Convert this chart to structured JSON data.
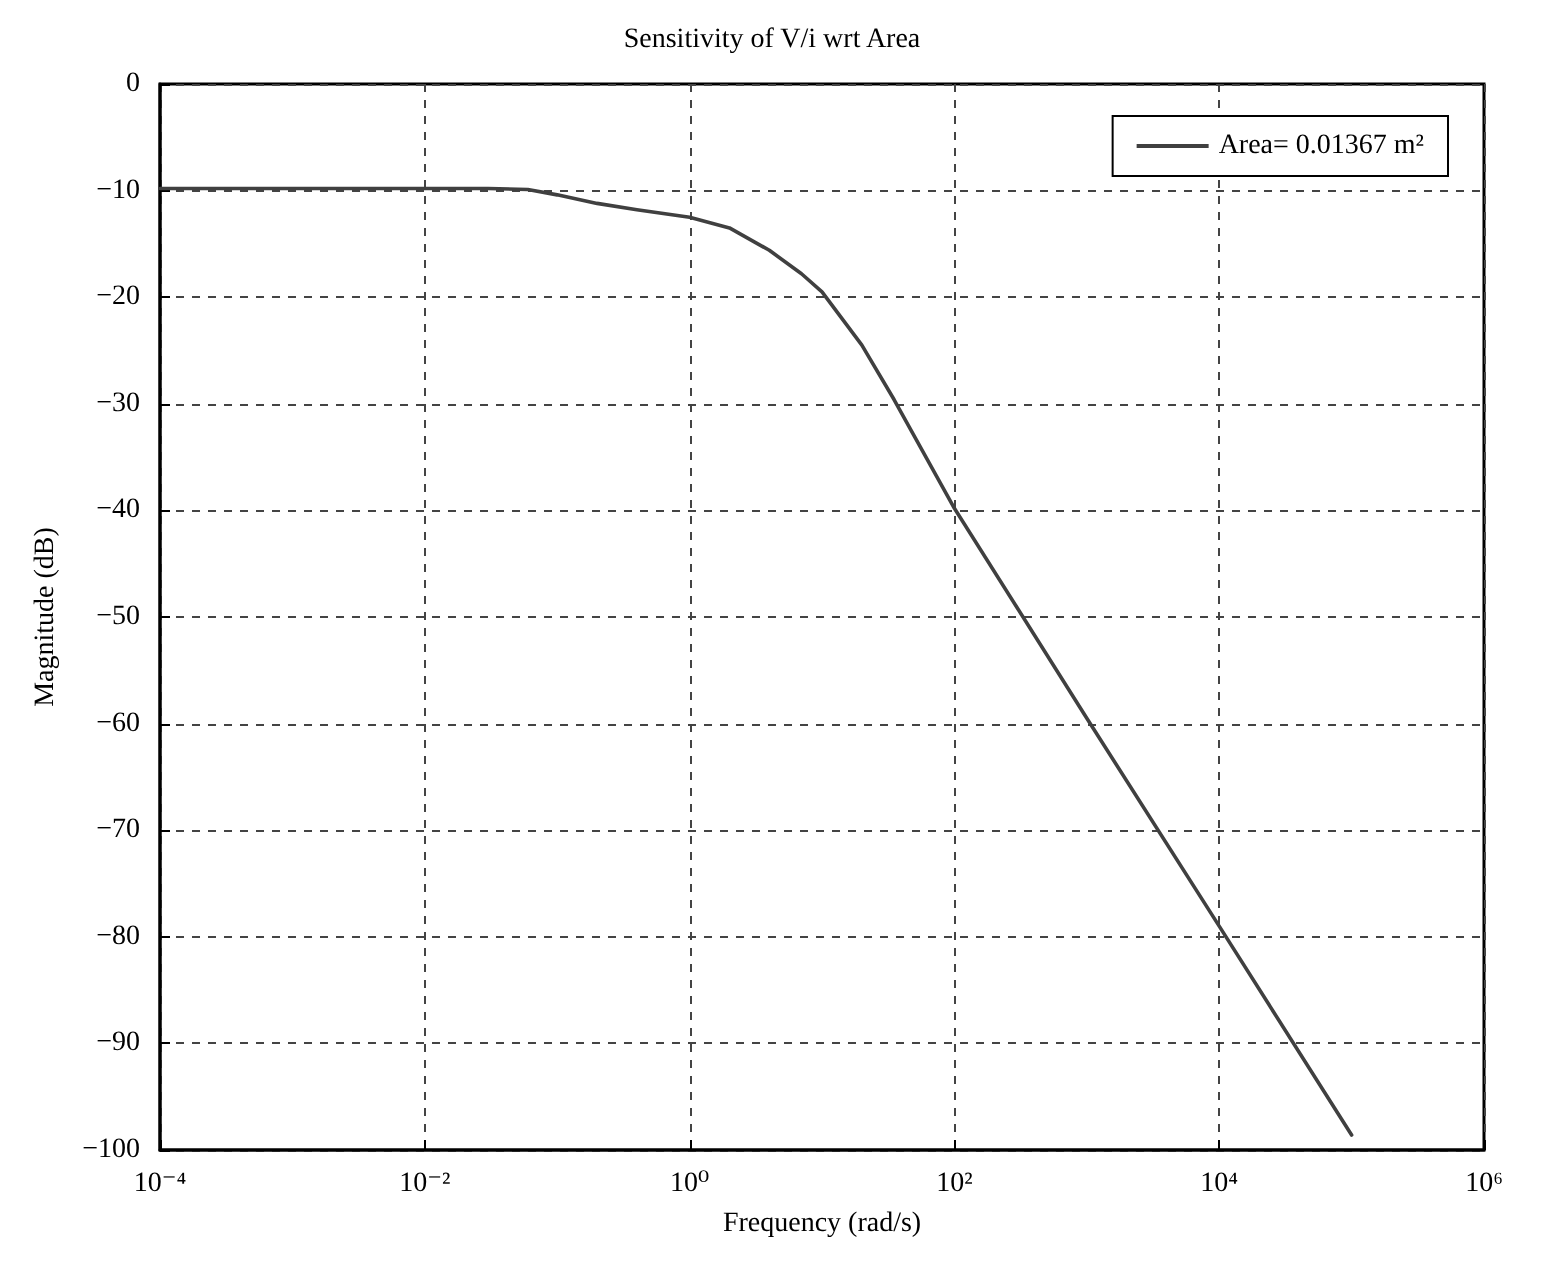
{
  "chart_data": {
    "type": "line",
    "title": "Sensitivity of V/i wrt Area",
    "xlabel": "Frequency (rad/s)",
    "ylabel": "Magnitude (dB)",
    "x": [
      0.0001,
      0.001,
      0.01,
      0.03,
      0.06,
      0.1,
      0.2,
      0.4,
      1,
      2,
      4,
      7,
      10,
      20,
      35,
      100,
      1000,
      10000,
      100000
    ],
    "series": [
      {
        "name": "Area= 0.01367 m²",
        "color": "#404040",
        "values": [
          -9.8,
          -9.8,
          -9.8,
          -9.8,
          -9.9,
          -10.4,
          -11.2,
          -11.8,
          -12.5,
          -13.5,
          -15.6,
          -17.8,
          -19.5,
          -24.5,
          -29.6,
          -39.8,
          -59.5,
          -79,
          -98.6
        ]
      }
    ],
    "log": "x",
    "xlim": [
      0.0001,
      1000000
    ],
    "xticks": [
      {
        "value": 0.0001,
        "label": "10⁻⁴"
      },
      {
        "value": 0.01,
        "label": "10⁻²"
      },
      {
        "value": 1,
        "label": "10⁰"
      },
      {
        "value": 100,
        "label": "10²"
      },
      {
        "value": 10000,
        "label": "10⁴"
      },
      {
        "value": 1000000,
        "label": "10⁶"
      }
    ],
    "ylim": [
      -100,
      0
    ],
    "yticks": [
      {
        "value": -100,
        "label": "−100"
      },
      {
        "value": -90,
        "label": "−90"
      },
      {
        "value": -80,
        "label": "−80"
      },
      {
        "value": -70,
        "label": "−70"
      },
      {
        "value": -60,
        "label": "−60"
      },
      {
        "value": -50,
        "label": "−50"
      },
      {
        "value": -40,
        "label": "−40"
      },
      {
        "value": -30,
        "label": "−30"
      },
      {
        "value": -20,
        "label": "−20"
      },
      {
        "value": -10,
        "label": "−10"
      },
      0
    ],
    "grid": true,
    "legend": "top right",
    "marker": "none",
    "line_style": "solid"
  }
}
